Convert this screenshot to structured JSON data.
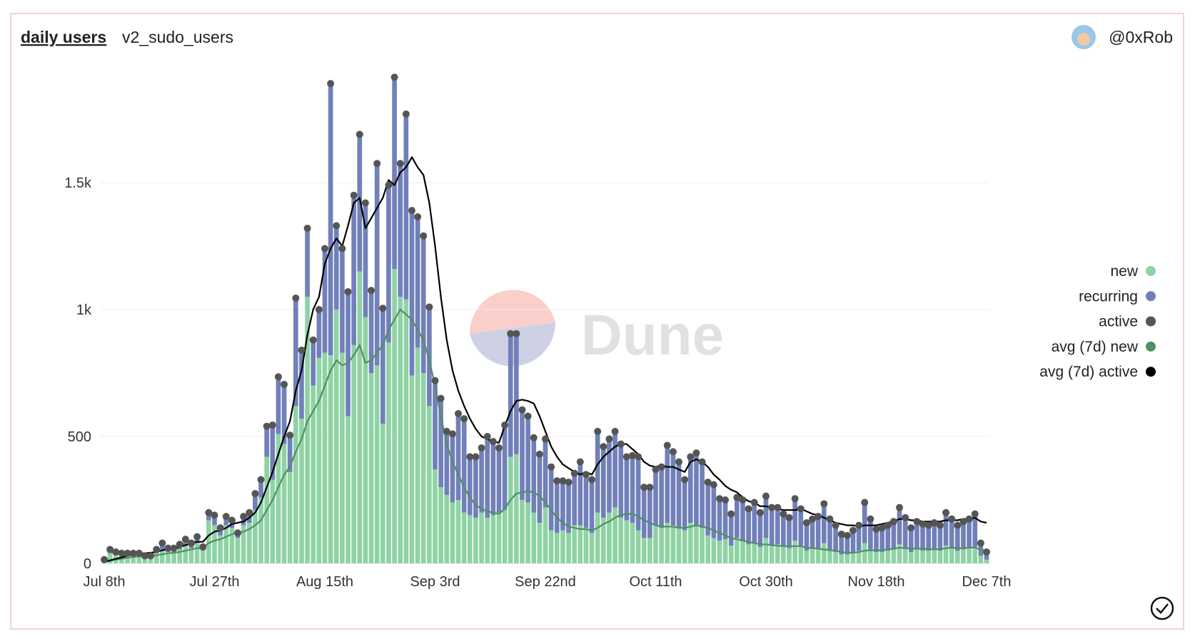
{
  "chart_data": {
    "type": "bar",
    "stacked": true,
    "title": "daily users",
    "subtitle": "v2_sudo_users",
    "categories": [
      "Jul 8th",
      null,
      null,
      null,
      null,
      null,
      null,
      null,
      null,
      null,
      null,
      null,
      null,
      null,
      null,
      null,
      null,
      null,
      null,
      "Jul 27th",
      null,
      null,
      null,
      null,
      null,
      null,
      null,
      null,
      null,
      null,
      null,
      null,
      null,
      null,
      null,
      null,
      null,
      null,
      "Aug 15th",
      null,
      null,
      null,
      null,
      null,
      null,
      null,
      null,
      null,
      null,
      null,
      null,
      null,
      null,
      null,
      null,
      null,
      null,
      "Sep 3rd",
      null,
      null,
      null,
      null,
      null,
      null,
      null,
      null,
      null,
      null,
      null,
      null,
      null,
      null,
      null,
      null,
      null,
      null,
      "Sep 22nd",
      null,
      null,
      null,
      null,
      null,
      null,
      null,
      null,
      null,
      null,
      null,
      null,
      null,
      null,
      null,
      null,
      null,
      null,
      "Oct 11th",
      null,
      null,
      null,
      null,
      null,
      null,
      null,
      null,
      null,
      null,
      null,
      null,
      null,
      null,
      null,
      null,
      null,
      null,
      "Oct 30th",
      null,
      null,
      null,
      null,
      null,
      null,
      null,
      null,
      null,
      null,
      null,
      null,
      null,
      null,
      null,
      null,
      null,
      null,
      "Nov 18th",
      null,
      null,
      null,
      null,
      null,
      null,
      null,
      null,
      null,
      null,
      null,
      null,
      null,
      null,
      null,
      null,
      null,
      null,
      "Dec 7th"
    ],
    "ylim": [
      0,
      2000
    ],
    "yticks": [
      0,
      500,
      {
        "value": 1000,
        "label": "1k"
      },
      {
        "value": 1500,
        "label": "1.5k"
      }
    ],
    "grid": true,
    "legend": "right",
    "series": [
      {
        "name": "new",
        "type": "bar",
        "color": "#8fd3a4",
        "values": [
          10,
          40,
          35,
          30,
          30,
          30,
          30,
          22,
          22,
          40,
          55,
          45,
          45,
          55,
          70,
          60,
          80,
          50,
          170,
          150,
          110,
          150,
          140,
          100,
          150,
          160,
          210,
          260,
          420,
          330,
          510,
          470,
          360,
          620,
          570,
          1050,
          700,
          810,
          830,
          820,
          1000,
          830,
          580,
          860,
          1150,
          970,
          750,
          780,
          550,
          870,
          1160,
          1050,
          1040,
          740,
          850,
          750,
          620,
          370,
          300,
          270,
          240,
          250,
          200,
          190,
          180,
          200,
          180,
          190,
          200,
          210,
          420,
          430,
          250,
          240,
          200,
          160,
          220,
          130,
          120,
          130,
          120,
          150,
          150,
          140,
          120,
          200,
          180,
          200,
          220,
          180,
          170,
          160,
          130,
          100,
          100,
          150,
          140,
          160,
          150,
          140,
          130,
          160,
          150,
          140,
          110,
          100,
          90,
          95,
          70,
          100,
          90,
          75,
          80,
          65,
          100,
          70,
          75,
          65,
          60,
          90,
          70,
          50,
          60,
          60,
          80,
          55,
          45,
          35,
          35,
          45,
          50,
          80,
          55,
          45,
          45,
          50,
          55,
          75,
          60,
          45,
          60,
          50,
          50,
          55,
          50,
          70,
          60,
          50,
          55,
          60,
          65,
          30,
          15
        ]
      },
      {
        "name": "recurring",
        "type": "bar",
        "color": "#7180b9",
        "values": [
          5,
          15,
          10,
          10,
          10,
          10,
          10,
          8,
          8,
          15,
          25,
          15,
          15,
          20,
          25,
          20,
          25,
          15,
          30,
          40,
          30,
          35,
          30,
          20,
          35,
          40,
          65,
          70,
          120,
          215,
          225,
          235,
          145,
          425,
          270,
          270,
          180,
          190,
          410,
          1070,
          330,
          410,
          490,
          590,
          540,
          450,
          325,
          795,
          455,
          620,
          755,
          525,
          730,
          650,
          515,
          540,
          390,
          350,
          350,
          250,
          270,
          340,
          370,
          230,
          240,
          255,
          320,
          290,
          255,
          335,
          485,
          475,
          355,
          340,
          295,
          270,
          270,
          250,
          205,
          195,
          200,
          205,
          250,
          210,
          210,
          320,
          280,
          290,
          300,
          290,
          250,
          265,
          290,
          200,
          200,
          220,
          240,
          305,
          290,
          260,
          200,
          260,
          285,
          260,
          210,
          210,
          165,
          155,
          125,
          160,
          160,
          140,
          160,
          135,
          165,
          150,
          145,
          130,
          120,
          165,
          145,
          110,
          115,
          125,
          155,
          120,
          105,
          80,
          75,
          85,
          100,
          160,
          120,
          90,
          95,
          100,
          110,
          145,
          120,
          95,
          105,
          105,
          100,
          105,
          100,
          130,
          115,
          100,
          110,
          115,
          130,
          50,
          30
        ]
      },
      {
        "name": "active",
        "type": "scatter",
        "color": "#555555",
        "values": [
          15,
          55,
          45,
          40,
          40,
          40,
          40,
          30,
          30,
          55,
          80,
          60,
          60,
          75,
          95,
          80,
          105,
          65,
          200,
          190,
          140,
          185,
          170,
          120,
          185,
          200,
          275,
          330,
          540,
          545,
          735,
          705,
          505,
          1045,
          840,
          1320,
          880,
          1000,
          1240,
          1890,
          1330,
          1240,
          1070,
          1450,
          1690,
          1420,
          1075,
          1575,
          1005,
          1490,
          1915,
          1575,
          1770,
          1390,
          1365,
          1290,
          1010,
          720,
          650,
          520,
          510,
          590,
          570,
          420,
          420,
          455,
          500,
          480,
          455,
          545,
          905,
          905,
          605,
          580,
          495,
          430,
          490,
          380,
          325,
          325,
          320,
          355,
          400,
          350,
          330,
          520,
          460,
          490,
          520,
          470,
          420,
          425,
          420,
          300,
          300,
          370,
          380,
          465,
          440,
          400,
          330,
          420,
          435,
          400,
          320,
          310,
          255,
          250,
          195,
          260,
          250,
          215,
          240,
          200,
          265,
          220,
          220,
          195,
          180,
          255,
          215,
          160,
          175,
          185,
          235,
          175,
          150,
          115,
          110,
          130,
          150,
          240,
          175,
          135,
          140,
          150,
          165,
          220,
          180,
          140,
          165,
          155,
          150,
          160,
          150,
          200,
          175,
          150,
          165,
          175,
          195,
          80,
          45
        ]
      },
      {
        "name": "avg (7d) new",
        "type": "line",
        "color": "#4f8f65",
        "values": [
          5,
          10,
          15,
          18,
          22,
          25,
          28,
          28,
          30,
          32,
          36,
          40,
          42,
          45,
          50,
          55,
          60,
          60,
          80,
          90,
          95,
          105,
          115,
          120,
          125,
          135,
          150,
          170,
          210,
          250,
          300,
          350,
          380,
          440,
          490,
          560,
          600,
          640,
          700,
          760,
          800,
          780,
          790,
          820,
          860,
          790,
          800,
          830,
          860,
          920,
          960,
          1000,
          980,
          960,
          920,
          880,
          800,
          700,
          580,
          470,
          400,
          350,
          300,
          260,
          230,
          215,
          205,
          200,
          195,
          215,
          250,
          275,
          280,
          285,
          280,
          265,
          240,
          210,
          180,
          160,
          145,
          140,
          135,
          135,
          130,
          140,
          155,
          165,
          180,
          190,
          195,
          195,
          185,
          170,
          160,
          150,
          145,
          145,
          145,
          140,
          140,
          145,
          150,
          145,
          140,
          130,
          120,
          110,
          100,
          95,
          90,
          85,
          80,
          75,
          75,
          72,
          70,
          68,
          68,
          68,
          68,
          62,
          60,
          58,
          55,
          52,
          50,
          45,
          42,
          42,
          45,
          50,
          52,
          52,
          52,
          55,
          58,
          62,
          60,
          58,
          58,
          58,
          56,
          56,
          56,
          60,
          62,
          60,
          60,
          62,
          62,
          55,
          50
        ]
      },
      {
        "name": "avg (7d) active",
        "type": "line",
        "color": "#000000",
        "values": [
          5,
          12,
          18,
          24,
          30,
          35,
          40,
          40,
          42,
          45,
          52,
          55,
          60,
          65,
          72,
          78,
          85,
          85,
          110,
          125,
          130,
          140,
          155,
          160,
          165,
          180,
          200,
          240,
          300,
          360,
          430,
          500,
          560,
          680,
          760,
          900,
          1000,
          1050,
          1180,
          1240,
          1280,
          1250,
          1330,
          1420,
          1440,
          1320,
          1360,
          1400,
          1440,
          1510,
          1490,
          1540,
          1560,
          1600,
          1560,
          1530,
          1420,
          1250,
          1050,
          880,
          760,
          680,
          620,
          570,
          530,
          500,
          490,
          480,
          475,
          540,
          600,
          640,
          645,
          640,
          630,
          580,
          520,
          460,
          420,
          390,
          375,
          360,
          350,
          360,
          350,
          390,
          420,
          440,
          460,
          470,
          470,
          450,
          430,
          400,
          385,
          380,
          385,
          380,
          380,
          370,
          360,
          400,
          410,
          400,
          380,
          350,
          330,
          305,
          290,
          280,
          260,
          245,
          240,
          225,
          225,
          220,
          215,
          210,
          210,
          210,
          215,
          205,
          195,
          190,
          180,
          170,
          160,
          155,
          150,
          150,
          145,
          150,
          150,
          150,
          155,
          160,
          165,
          175,
          175,
          170,
          170,
          165,
          165,
          165,
          165,
          170,
          170,
          170,
          175,
          175,
          180,
          165,
          160
        ]
      }
    ]
  },
  "author": "@0xRob",
  "watermark": "Dune"
}
